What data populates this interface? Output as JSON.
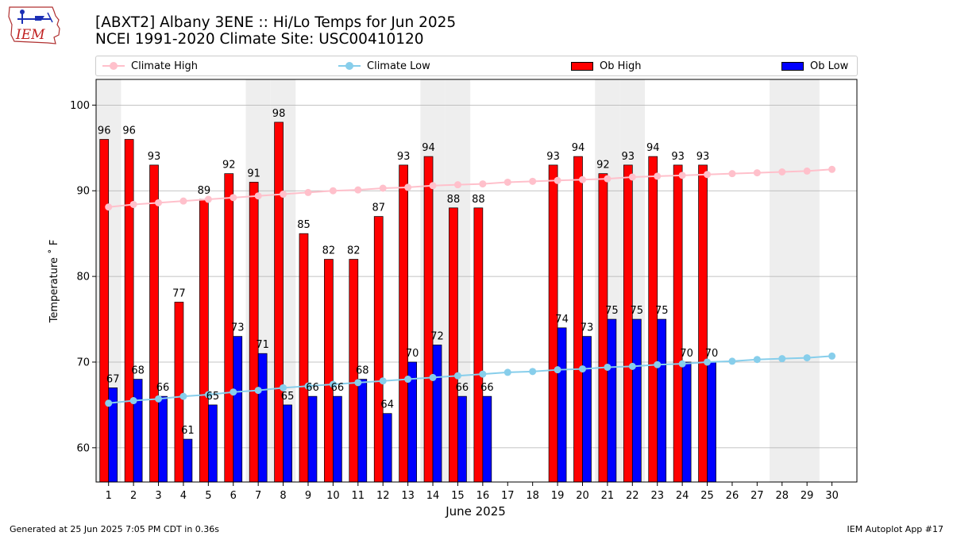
{
  "header": {
    "logo_text": "IEM",
    "title_line1": "[ABXT2] Albany 3ENE :: Hi/Lo Temps for Jun 2025",
    "title_line2": "NCEI 1991-2020 Climate Site: USC00410120"
  },
  "legend": {
    "climate_high": "Climate High",
    "climate_low": "Climate Low",
    "ob_high": "Ob High",
    "ob_low": "Ob Low"
  },
  "colors": {
    "ob_high": "#ff0000",
    "ob_low": "#0000ff",
    "climate_high": "#ffc0cb",
    "climate_low": "#87ceeb",
    "weekend_shade": "#eeeeee",
    "grid": "#b0b0b0"
  },
  "chart_data": {
    "type": "bar",
    "xlabel": "June 2025",
    "ylabel": "Temperature ˚ F",
    "ylim": [
      56,
      103
    ],
    "yticks": [
      60,
      70,
      80,
      90,
      100
    ],
    "grid": "horizontal",
    "legend_position": "top",
    "categories": [
      "1",
      "2",
      "3",
      "4",
      "5",
      "6",
      "7",
      "8",
      "9",
      "10",
      "11",
      "12",
      "13",
      "14",
      "15",
      "16",
      "17",
      "18",
      "19",
      "20",
      "21",
      "22",
      "23",
      "24",
      "25",
      "26",
      "27",
      "28",
      "29",
      "30"
    ],
    "shaded_days": [
      1,
      7,
      8,
      14,
      15,
      21,
      22,
      28,
      29
    ],
    "series": [
      {
        "name": "Ob High",
        "kind": "bar",
        "values": [
          96,
          96,
          93,
          77,
          89,
          92,
          91,
          98,
          85,
          82,
          82,
          87,
          93,
          94,
          88,
          88,
          null,
          null,
          93,
          94,
          92,
          93,
          94,
          93,
          93,
          null,
          null,
          null,
          null,
          null
        ]
      },
      {
        "name": "Ob Low",
        "kind": "bar",
        "values": [
          67,
          68,
          66,
          61,
          65,
          73,
          71,
          65,
          66,
          66,
          68,
          64,
          70,
          72,
          66,
          66,
          null,
          null,
          74,
          73,
          75,
          75,
          75,
          70,
          70,
          null,
          null,
          null,
          null,
          null
        ]
      },
      {
        "name": "Climate High",
        "kind": "line",
        "values": [
          88.1,
          88.4,
          88.6,
          88.8,
          89.0,
          89.2,
          89.4,
          89.6,
          89.8,
          90.0,
          90.1,
          90.3,
          90.4,
          90.6,
          90.7,
          90.8,
          91.0,
          91.1,
          91.2,
          91.3,
          91.4,
          91.6,
          91.7,
          91.8,
          91.9,
          92.0,
          92.1,
          92.2,
          92.3,
          92.5
        ]
      },
      {
        "name": "Climate Low",
        "kind": "line",
        "values": [
          65.2,
          65.5,
          65.7,
          66.0,
          66.2,
          66.5,
          66.7,
          67.0,
          67.2,
          67.4,
          67.6,
          67.8,
          68.0,
          68.2,
          68.4,
          68.6,
          68.8,
          68.9,
          69.1,
          69.2,
          69.4,
          69.5,
          69.7,
          69.8,
          70.0,
          70.1,
          70.3,
          70.4,
          70.5,
          70.7
        ]
      }
    ]
  },
  "footer": {
    "generated": "Generated at 25 Jun 2025 7:05 PM CDT in 0.36s",
    "app": "IEM Autoplot App #17"
  }
}
